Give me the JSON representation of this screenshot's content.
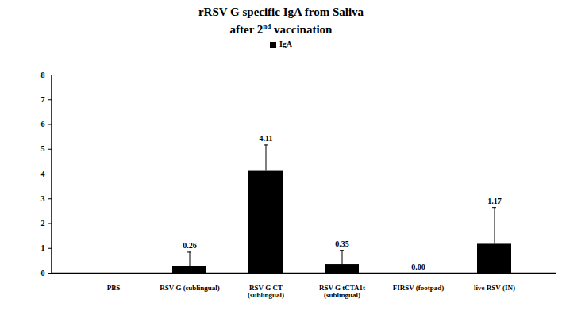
{
  "chart_data": {
    "type": "bar",
    "title": "rRSV G specific IgA from Saliva",
    "subtitle": "after 2nd vaccination",
    "categories": [
      "PBS",
      "RSV G (sublingual)",
      "RSV G CT\n(sublingual)",
      "RSV G tCTA1t\n(sublingual)",
      "FIRSV (footpad)",
      "live RSV (IN)"
    ],
    "series": [
      {
        "name": "IgA",
        "color": "#000000",
        "values": [
          0,
          0.26,
          4.11,
          0.35,
          0.0,
          1.17
        ],
        "value_labels": [
          null,
          "0.26",
          "4.11",
          "0.35",
          "0.00",
          "1.17"
        ],
        "errors": [
          0,
          0.59,
          1.06,
          0.57,
          0,
          1.48
        ]
      }
    ],
    "ylim": [
      0,
      8
    ],
    "yticks": [
      0,
      1,
      2,
      3,
      4,
      5,
      6,
      7,
      8
    ],
    "grid": false,
    "legend": "top",
    "data_labels": true
  }
}
